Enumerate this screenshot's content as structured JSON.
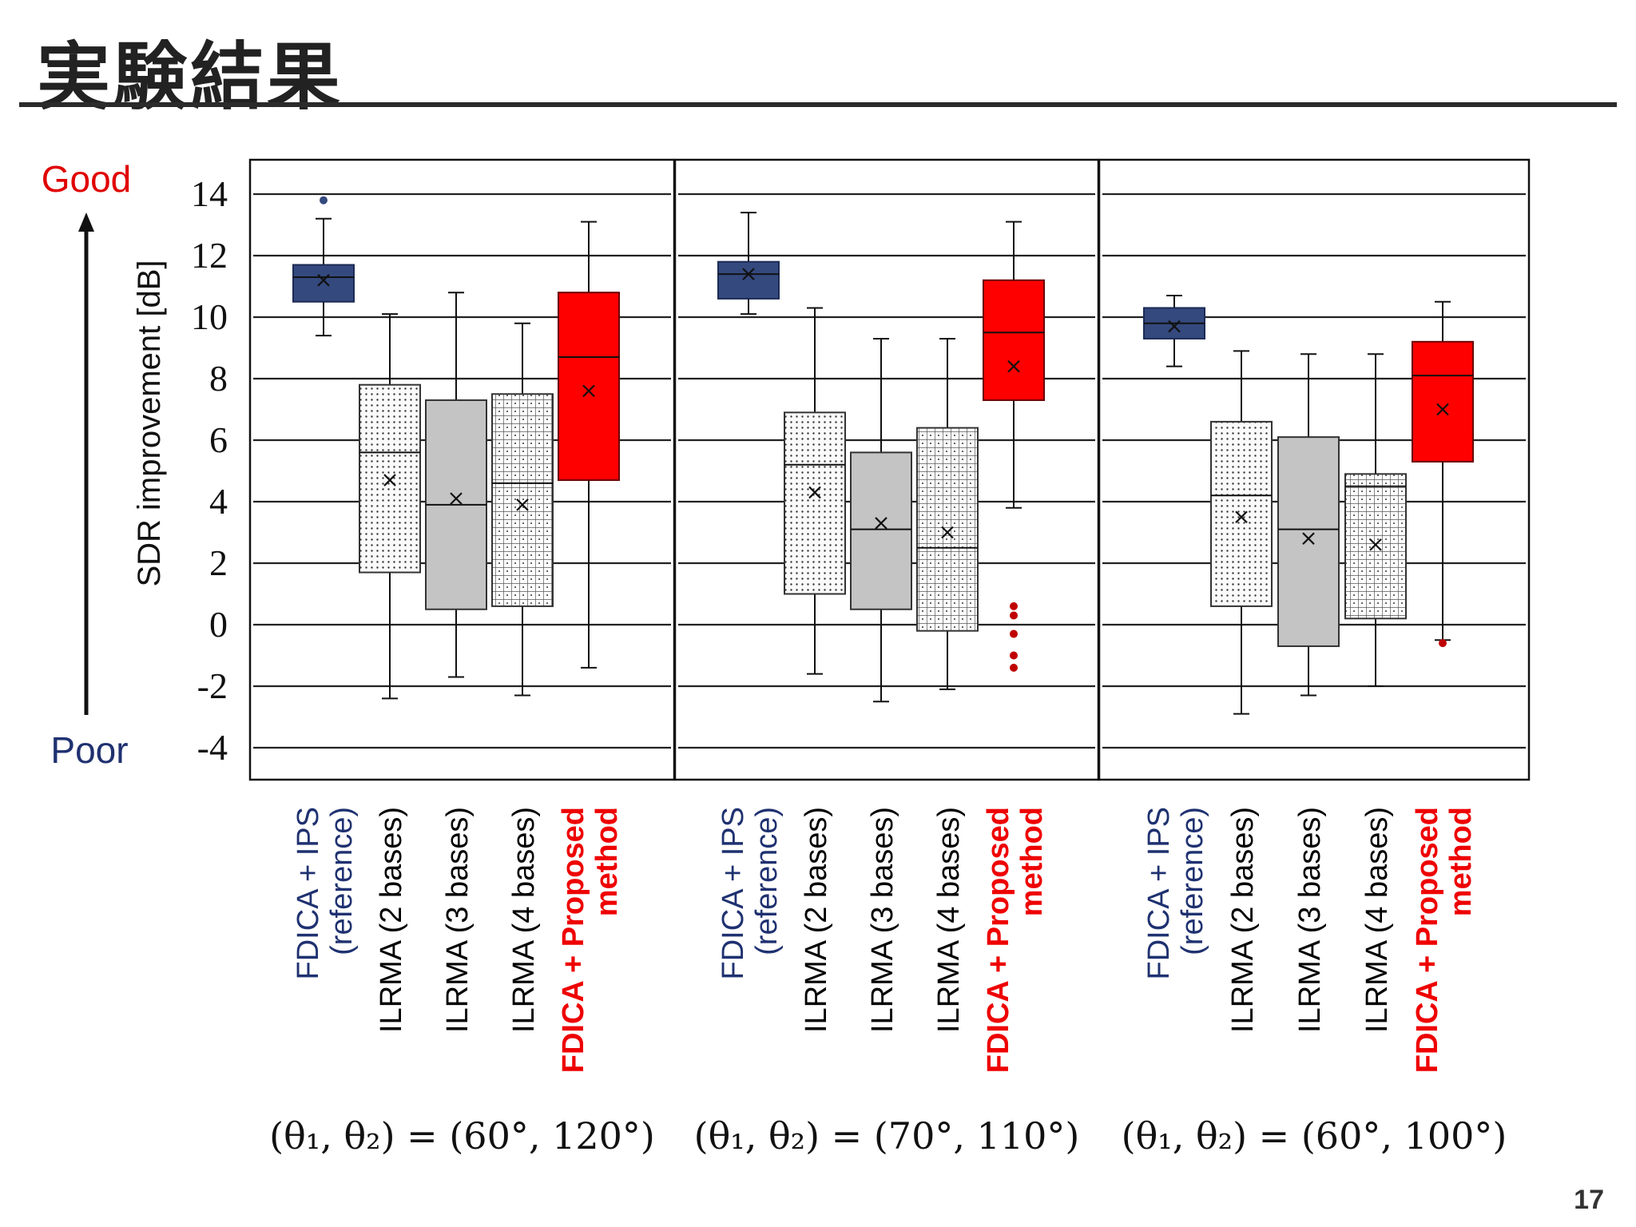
{
  "slide": {
    "title": "実験結果",
    "page_number": "17"
  },
  "annotations": {
    "good_label": "Good",
    "poor_label": "Poor",
    "good_color": "#e00000",
    "poor_color": "#1f3170"
  },
  "colors": {
    "reference": "#34497e",
    "proposed": "#ff0000",
    "ilrma3": "#c4c4c4",
    "outlier_ref": "#34497e",
    "outlier_prop": "#c00000",
    "reference_label": "#1f3170",
    "proposed_label": "#ee0000"
  },
  "chart_data": [
    {
      "type": "box",
      "caption": "(θ₁, θ₂) = (60°, 120°)",
      "ylabel": "SDR improvement [dB]",
      "ylim": [
        -5,
        15
      ],
      "yticks": [
        -4,
        -2,
        0,
        2,
        4,
        6,
        8,
        10,
        12,
        14
      ],
      "grid": true,
      "categories": [
        {
          "label": [
            "FDICA + IPS",
            "(reference)"
          ],
          "style": "reference",
          "min": 9.4,
          "q1": 10.5,
          "median": 11.3,
          "q3": 11.7,
          "max": 13.2,
          "mean": 11.2,
          "outliers": [
            13.8
          ]
        },
        {
          "label": [
            "ILRMA (2 bases)"
          ],
          "style": "dots",
          "min": -2.4,
          "q1": 1.7,
          "median": 5.6,
          "q3": 7.8,
          "max": 10.1,
          "mean": 4.7,
          "outliers": []
        },
        {
          "label": [
            "ILRMA (3 bases)"
          ],
          "style": "gray",
          "min": -1.7,
          "q1": 0.5,
          "median": 3.9,
          "q3": 7.3,
          "max": 10.8,
          "mean": 4.1,
          "outliers": []
        },
        {
          "label": [
            "ILRMA (4 bases)"
          ],
          "style": "grid",
          "min": -2.3,
          "q1": 0.6,
          "median": 4.6,
          "q3": 7.5,
          "max": 9.8,
          "mean": 3.9,
          "outliers": []
        },
        {
          "label": [
            "FDICA + Proposed",
            "method"
          ],
          "style": "proposed",
          "min": -1.4,
          "q1": 4.7,
          "median": 8.7,
          "q3": 10.8,
          "max": 13.1,
          "mean": 7.6,
          "outliers": []
        }
      ]
    },
    {
      "type": "box",
      "caption": "(θ₁, θ₂) = (70°, 110°)",
      "ylim": [
        -5,
        15
      ],
      "grid": true,
      "categories": [
        {
          "label": [
            "FDICA + IPS",
            "(reference)"
          ],
          "style": "reference",
          "min": 10.1,
          "q1": 10.6,
          "median": 11.4,
          "q3": 11.8,
          "max": 13.4,
          "mean": 11.4,
          "outliers": []
        },
        {
          "label": [
            "ILRMA (2 bases)"
          ],
          "style": "dots",
          "min": -1.6,
          "q1": 1.0,
          "median": 5.2,
          "q3": 6.9,
          "max": 10.3,
          "mean": 4.3,
          "outliers": []
        },
        {
          "label": [
            "ILRMA (3 bases)"
          ],
          "style": "gray",
          "min": -2.5,
          "q1": 0.5,
          "median": 3.1,
          "q3": 5.6,
          "max": 9.3,
          "mean": 3.3,
          "outliers": []
        },
        {
          "label": [
            "ILRMA (4 bases)"
          ],
          "style": "grid",
          "min": -2.1,
          "q1": -0.2,
          "median": 2.5,
          "q3": 6.4,
          "max": 9.3,
          "mean": 3.0,
          "outliers": []
        },
        {
          "label": [
            "FDICA + Proposed",
            "method"
          ],
          "style": "proposed",
          "min": 3.8,
          "q1": 7.3,
          "median": 9.5,
          "q3": 11.2,
          "max": 13.1,
          "mean": 8.4,
          "outliers": [
            0.6,
            0.3,
            -0.3,
            -1.0,
            -1.4
          ]
        }
      ]
    },
    {
      "type": "box",
      "caption": "(θ₁, θ₂) = (60°, 100°)",
      "ylim": [
        -5,
        15
      ],
      "grid": true,
      "categories": [
        {
          "label": [
            "FDICA + IPS",
            "(reference)"
          ],
          "style": "reference",
          "min": 8.4,
          "q1": 9.3,
          "median": 9.8,
          "q3": 10.3,
          "max": 10.7,
          "mean": 9.7,
          "outliers": []
        },
        {
          "label": [
            "ILRMA (2 bases)"
          ],
          "style": "dots",
          "min": -2.9,
          "q1": 0.6,
          "median": 4.2,
          "q3": 6.6,
          "max": 8.9,
          "mean": 3.5,
          "outliers": []
        },
        {
          "label": [
            "ILRMA (3 bases)"
          ],
          "style": "gray",
          "min": -2.3,
          "q1": -0.7,
          "median": 3.1,
          "q3": 6.1,
          "max": 8.8,
          "mean": 2.8,
          "outliers": []
        },
        {
          "label": [
            "ILRMA (4 bases)"
          ],
          "style": "grid",
          "min": -2.0,
          "q1": 0.2,
          "median": 4.5,
          "q3": 4.9,
          "max": 8.8,
          "mean": 2.6,
          "outliers": []
        },
        {
          "label": [
            "FDICA + Proposed",
            "method"
          ],
          "style": "proposed",
          "min": -0.5,
          "q1": 5.3,
          "median": 8.1,
          "q3": 9.2,
          "max": 10.5,
          "mean": 7.0,
          "outliers": [
            -0.6
          ]
        }
      ]
    }
  ]
}
